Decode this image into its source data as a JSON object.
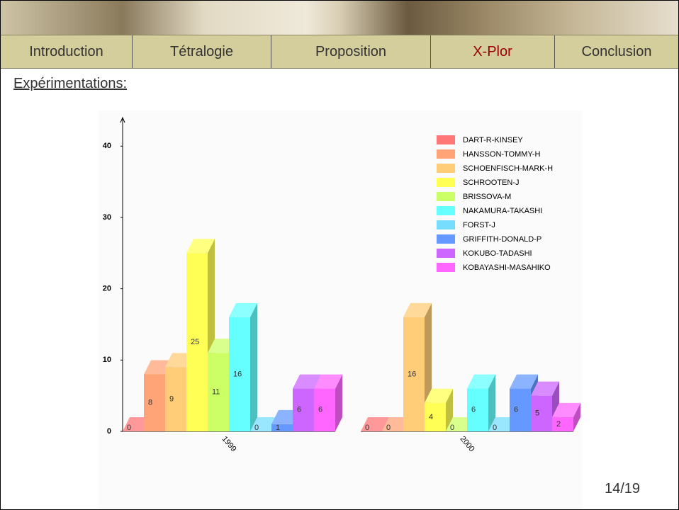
{
  "nav": [
    "Introduction",
    "Tétralogie",
    "Proposition",
    "X-Plor",
    "Conclusion"
  ],
  "heading": "Expérimentations:",
  "page_number": "14/19",
  "chart_data": {
    "type": "bar3d",
    "categories": [
      "1999",
      "2000"
    ],
    "series": [
      {
        "name": "DART-R-KINSEY",
        "color": "#ff7777",
        "values": [
          0,
          0
        ]
      },
      {
        "name": "HANSSON-TOMMY-H",
        "color": "#ffa477",
        "values": [
          8,
          0
        ]
      },
      {
        "name": "SCHOENFISCH-MARK-H",
        "color": "#ffcc77",
        "values": [
          9,
          16
        ]
      },
      {
        "name": "SCHROOTEN-J",
        "color": "#ffff55",
        "values": [
          25,
          4
        ]
      },
      {
        "name": "BRISSOVA-M",
        "color": "#ccff66",
        "values": [
          11,
          0
        ]
      },
      {
        "name": "NAKAMURA-TAKASHI",
        "color": "#66ffff",
        "values": [
          16,
          6
        ]
      },
      {
        "name": "FORST-J",
        "color": "#77ddff",
        "values": [
          0,
          0
        ]
      },
      {
        "name": "GRIFFITH-DONALD-P",
        "color": "#6699ff",
        "values": [
          1,
          6
        ]
      },
      {
        "name": "KOKUBO-TADASHI",
        "color": "#cc66ff",
        "values": [
          6,
          5
        ]
      },
      {
        "name": "KOBAYASHI-MASAHIKO",
        "color": "#ff66ff",
        "values": [
          6,
          2
        ]
      }
    ],
    "ylim": [
      0,
      44
    ],
    "yticks": [
      0,
      10,
      20,
      30,
      40
    ],
    "legend": "upper right"
  }
}
